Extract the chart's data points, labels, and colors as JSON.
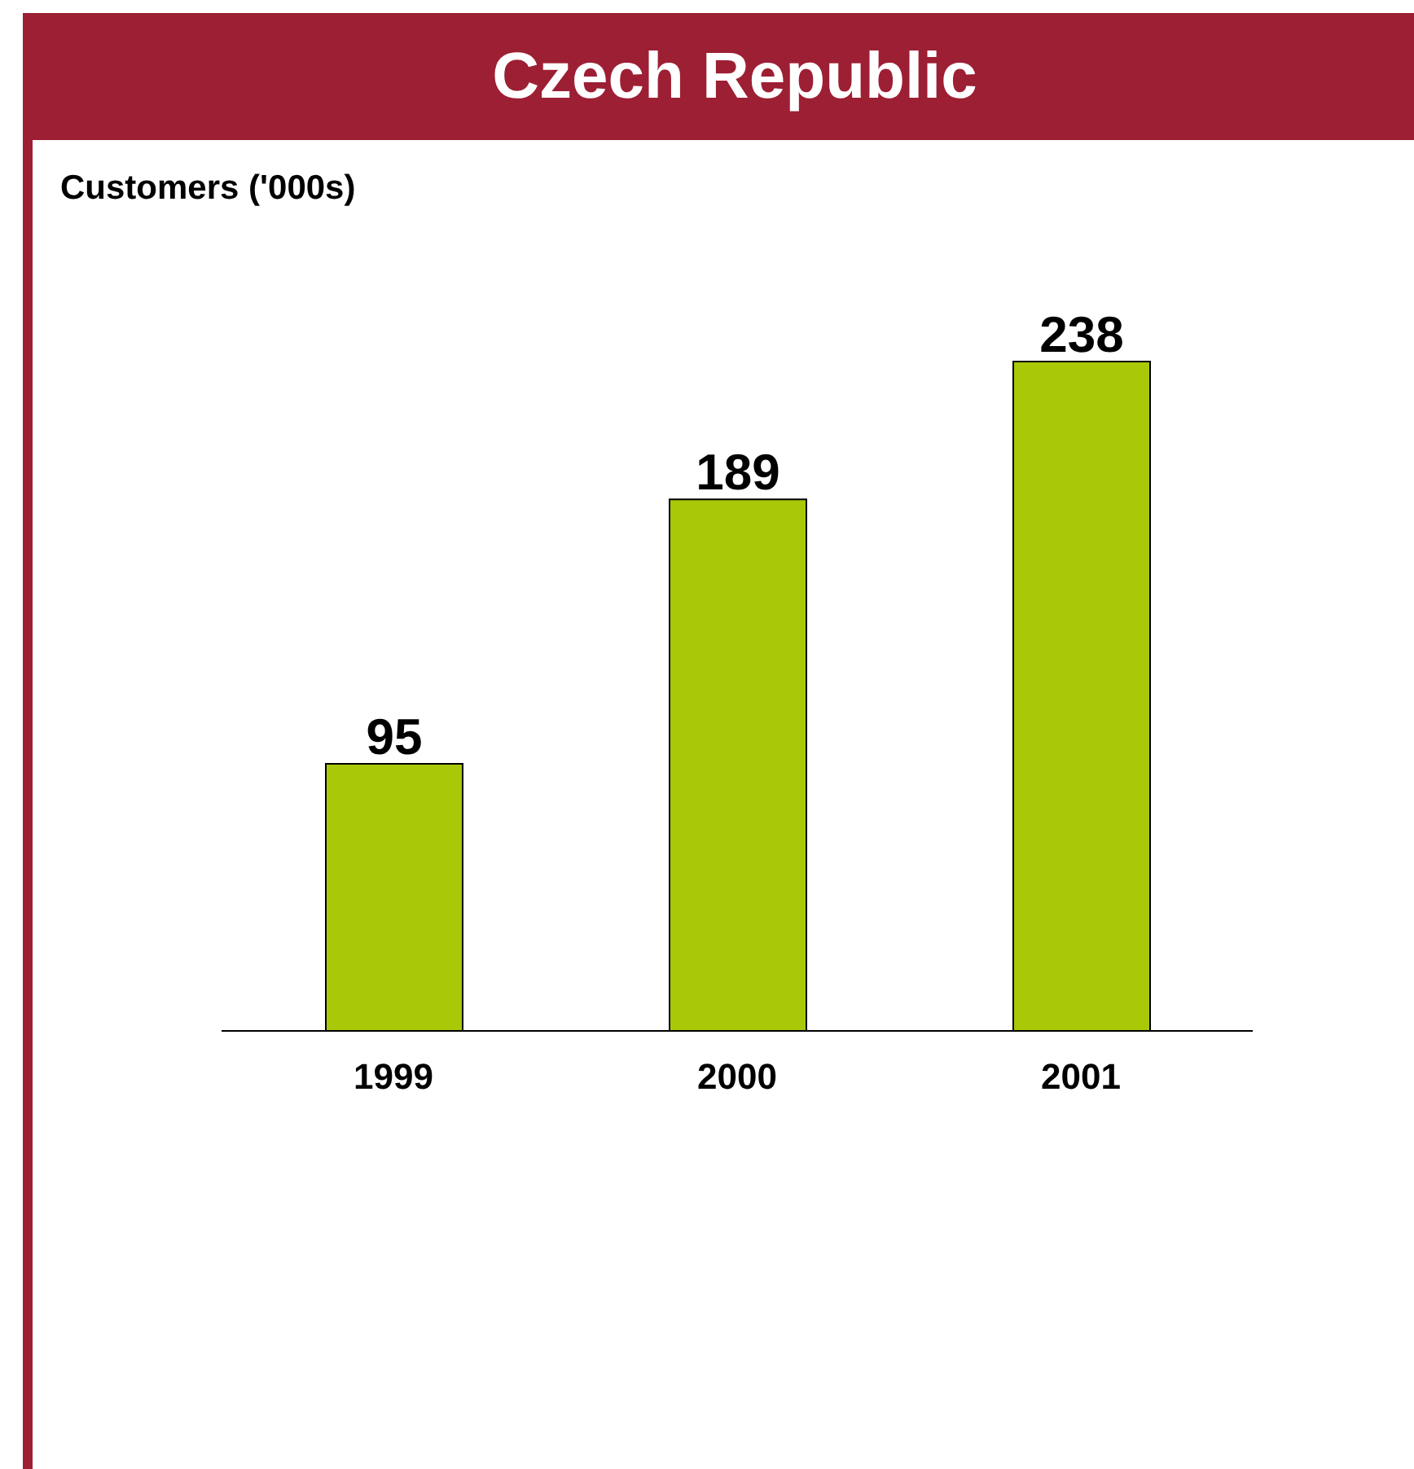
{
  "chart_data": {
    "type": "bar",
    "title": "Czech Republic",
    "ylabel": "Customers ('000s)",
    "categories": [
      "1999",
      "2000",
      "2001"
    ],
    "values": [
      95,
      189,
      238
    ],
    "color": "#a8c808",
    "data_labels": true,
    "grid": false,
    "legend": false,
    "tick_labels": "x"
  }
}
